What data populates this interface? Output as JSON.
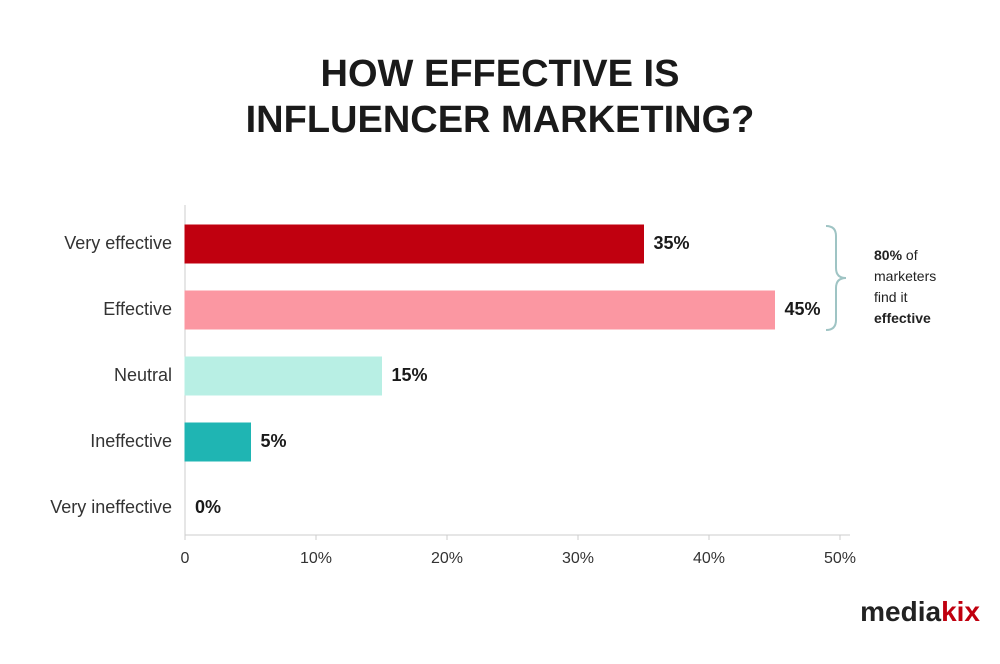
{
  "chart_data": {
    "type": "hbar",
    "title": [
      "HOW EFFECTIVE IS",
      "INFLUENCER MARKETING?"
    ],
    "categories": [
      "Very effective",
      "Effective",
      "Neutral",
      "Ineffective",
      "Very ineffective"
    ],
    "values": [
      35,
      45,
      15,
      5,
      0
    ],
    "value_labels": [
      "35%",
      "45%",
      "15%",
      "5%",
      "0%"
    ],
    "colors": [
      "#c0000f",
      "#fb97a2",
      "#b8efe4",
      "#1fb5b3",
      "#666666"
    ],
    "xlim": [
      0,
      50
    ],
    "xticks": [
      0,
      {
        "value": 10,
        "label": "10%"
      },
      {
        "value": 20,
        "label": "20%"
      },
      {
        "value": 30,
        "label": "30%"
      },
      {
        "value": 40,
        "label": "40%"
      },
      {
        "value": 50,
        "label": "50%"
      }
    ],
    "annotation": [
      [
        {
          "text": "80%",
          "bold": true
        },
        {
          "text": " of",
          "bold": false
        }
      ],
      [
        {
          "text": "marketers",
          "bold": false
        }
      ],
      [
        {
          "text": "find it",
          "bold": false
        }
      ],
      [
        {
          "text": "effective",
          "bold": true
        }
      ]
    ],
    "logo": [
      {
        "text": "media",
        "color": "#222222"
      },
      {
        "text": "kix",
        "color": "#c0000f"
      }
    ]
  }
}
